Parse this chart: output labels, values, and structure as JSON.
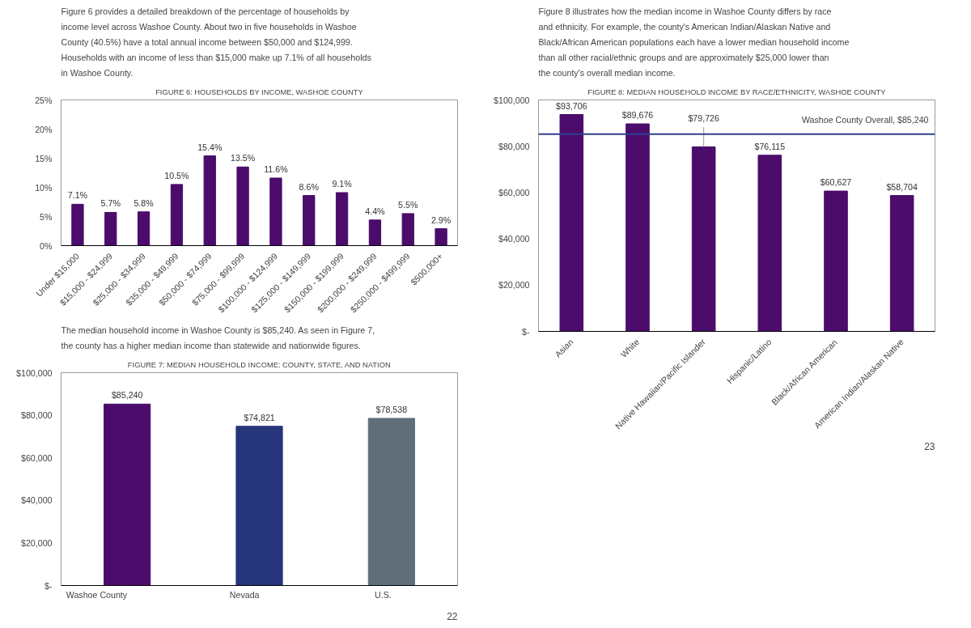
{
  "chart_data": [
    {
      "type": "bar",
      "title": "FIGURE 6: HOUSEHOLDS BY INCOME, WASHOE COUNTY",
      "categories": [
        "Under $15,000",
        "$15,000 - $24,999",
        "$25,000 - $34,999",
        "$35,000 - $49,999",
        "$50,000 - $74,999",
        "$75,000 - $99,999",
        "$100,000 - $124,999",
        "$125,000 - $149,999",
        "$150,000 - $199,999",
        "$200,000 - $249,999",
        "$250,000 - $499,999",
        "$500,000+"
      ],
      "values": [
        7.1,
        5.7,
        5.8,
        10.5,
        15.4,
        13.5,
        11.6,
        8.6,
        9.1,
        4.4,
        5.5,
        2.9
      ],
      "value_labels": [
        "7.1%",
        "5.7%",
        "5.8%",
        "10.5%",
        "15.4%",
        "13.5%",
        "11.6%",
        "8.6%",
        "9.1%",
        "4.4%",
        "5.5%",
        "2.9%"
      ],
      "color": "#4b0c6b",
      "ylim": [
        0,
        25
      ],
      "yticks": [
        {
          "value": 0,
          "label": "0%"
        },
        {
          "value": 5,
          "label": "5%"
        },
        {
          "value": 10,
          "label": "10%"
        },
        {
          "value": 15,
          "label": "15%"
        },
        {
          "value": 20,
          "label": "20%"
        },
        {
          "value": 25,
          "label": "25%"
        }
      ],
      "annotations": [
        "Figure 6 provides a detailed breakdown of the percentage of households by income level across Washoe County. About two in five households in Washoe County (40.5%) have a total annual income between $50,000 and $124,999. Households with an income of less than $15,000 make up 7.1% of all households in Washoe County."
      ]
    },
    {
      "type": "bar",
      "title": "FIGURE 7: MEDIAN HOUSEHOLD INCOME: COUNTY, STATE, AND NATION",
      "categories": [
        "Washoe County",
        "Nevada",
        "U.S."
      ],
      "values": [
        85240,
        74821,
        78538
      ],
      "value_labels": [
        "$85,240",
        "$74,821",
        "$78,538"
      ],
      "colors": [
        "#4b0c6b",
        "#27357a",
        "#5f6e78"
      ],
      "ylim": [
        0,
        100000
      ],
      "yticks": [
        {
          "value": 0,
          "label": "$-"
        },
        {
          "value": 20000,
          "label": "$20,000"
        },
        {
          "value": 40000,
          "label": "$40,000"
        },
        {
          "value": 60000,
          "label": "$60,000"
        },
        {
          "value": 80000,
          "label": "$80,000"
        },
        {
          "value": 100000,
          "label": "$100,000"
        }
      ],
      "annotations": [
        "The median household income in Washoe County is $85,240. As seen in Figure 7, the county has a higher median income than statewide and nationwide figures.",
        "22"
      ]
    },
    {
      "type": "bar",
      "title": "FIGURE 8: MEDIAN HOUSEHOLD INCOME BY RACE/ETHNICITY, WASHOE COUNTY",
      "categories": [
        "Asian",
        "White",
        "Native Hawaiian/Pacific Islander",
        "Hispanic/Latino",
        "Black/African American",
        "American Indian/Alaskan Native"
      ],
      "values": [
        93706,
        89676,
        79726,
        76115,
        60627,
        58704
      ],
      "value_labels": [
        "$93,706",
        "$89,676",
        "$79,726",
        "$76,115",
        "$60,627",
        "$58,704"
      ],
      "color": "#4b0c6b",
      "ylim": [
        0,
        100000
      ],
      "yticks": [
        {
          "value": 0,
          "label": "$-"
        },
        {
          "value": 20000,
          "label": "$20,000"
        },
        {
          "value": 40000,
          "label": "$40,000"
        },
        {
          "value": 60000,
          "label": "$60,000"
        },
        {
          "value": 80000,
          "label": "$80,000"
        },
        {
          "value": 100000,
          "label": "$100,000"
        }
      ],
      "ref_lines": [
        {
          "axis": "y",
          "value": 85240,
          "label": "Washoe County Overall, $85,240",
          "color": "#2f3f8f"
        }
      ],
      "annotations": [
        "Figure 8 illustrates how the median income in Washoe County differs by race and ethnicity. For example, the county's American Indian/Alaskan Native and Black/African American populations each have a lower median household income than all other racial/ethnic groups and are approximately $25,000 lower than the county's overall median income.",
        "23"
      ]
    }
  ]
}
